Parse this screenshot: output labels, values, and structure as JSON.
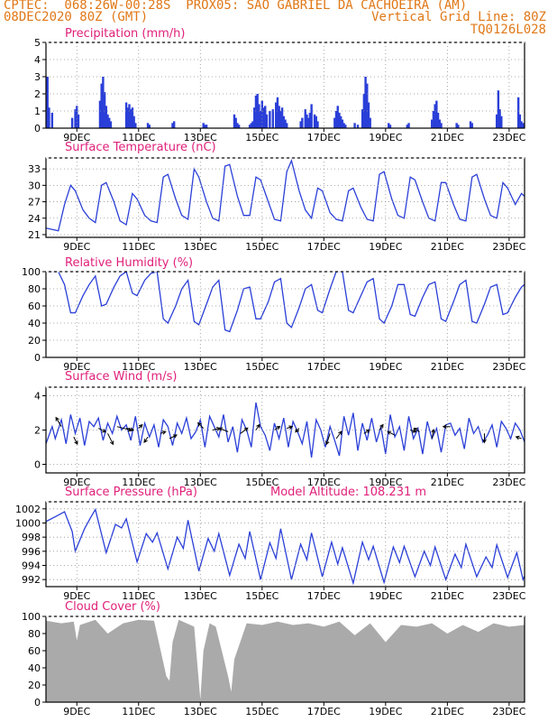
{
  "header": {
    "line1_left": "CPTEC:  068:26W-00:28S  PROX05: SAO GABRIEL DA CACHOEIRA (AM)",
    "line2_left": "08DEC2020 80Z (GMT)",
    "line2_right": "Vertical Grid Line: 80Z",
    "line3_right": "TQ0126L028"
  },
  "colors": {
    "header": "#e07818",
    "panel_title": "#e0207a",
    "line": "#2a3fd8",
    "bars": "#2a3fd8",
    "cloud": "#aaaaaa",
    "grid": "#909090"
  },
  "chart_data": [
    {
      "id": "precip",
      "type": "bar",
      "title": "Precipitation (mm/h)",
      "ylim": [
        0,
        5
      ],
      "yticks": [
        0,
        1,
        2,
        3,
        4,
        5
      ],
      "xlim": [
        0,
        15.5
      ],
      "xticks": [
        1,
        3,
        5,
        7,
        9,
        11,
        13,
        15
      ],
      "xtick_labels": [
        "9DEC",
        "11DEC",
        "13DEC",
        "15DEC",
        "17DEC",
        "19DEC",
        "21DEC",
        "23DEC"
      ],
      "grid": true,
      "x": [
        0.05,
        0.1,
        0.2,
        0.85,
        0.95,
        1.0,
        1.05,
        1.75,
        1.8,
        1.85,
        1.9,
        1.95,
        2.0,
        2.05,
        2.1,
        2.6,
        2.65,
        2.7,
        2.75,
        2.8,
        2.85,
        2.9,
        3.3,
        3.35,
        4.1,
        4.15,
        5.1,
        5.15,
        5.2,
        6.1,
        6.15,
        6.2,
        6.25,
        6.6,
        6.65,
        6.7,
        6.75,
        6.8,
        6.85,
        6.9,
        6.95,
        7.0,
        7.05,
        7.1,
        7.15,
        7.25,
        7.35,
        7.45,
        7.5,
        7.55,
        7.6,
        7.65,
        7.7,
        7.75,
        7.8,
        8.25,
        8.3,
        8.4,
        8.45,
        8.5,
        8.55,
        8.6,
        8.7,
        8.75,
        8.8,
        9.35,
        9.4,
        9.45,
        9.5,
        9.55,
        9.6,
        9.65,
        9.7,
        10.0,
        10.1,
        10.25,
        10.3,
        10.35,
        10.4,
        10.45,
        10.5,
        11.1,
        11.15,
        11.7,
        11.75,
        12.5,
        12.55,
        12.6,
        12.65,
        12.7,
        12.75,
        12.8,
        13.3,
        13.35,
        13.75,
        13.8,
        14.6,
        14.65,
        14.7,
        14.75,
        15.3,
        15.35,
        15.4,
        15.45
      ],
      "values": [
        3.0,
        1.2,
        0.9,
        0.6,
        1.1,
        1.3,
        0.8,
        1.6,
        2.6,
        3.0,
        2.1,
        1.3,
        0.8,
        0.6,
        0.4,
        1.5,
        1.2,
        1.4,
        1.1,
        1.2,
        0.7,
        0.3,
        0.3,
        0.2,
        0.3,
        0.4,
        0.3,
        0.2,
        0.2,
        0.8,
        0.6,
        0.3,
        0.2,
        0.2,
        0.3,
        0.4,
        1.2,
        1.9,
        2.0,
        1.4,
        1.0,
        1.6,
        1.2,
        1.3,
        0.8,
        1.0,
        1.1,
        1.5,
        1.8,
        1.3,
        1.0,
        1.2,
        0.7,
        0.5,
        0.3,
        0.4,
        0.6,
        1.1,
        0.8,
        0.6,
        0.9,
        1.4,
        0.8,
        0.7,
        0.4,
        0.6,
        1.0,
        1.3,
        0.9,
        0.7,
        0.5,
        0.3,
        0.2,
        0.3,
        0.2,
        1.1,
        2.0,
        3.0,
        2.6,
        1.5,
        0.6,
        0.3,
        0.2,
        0.2,
        0.3,
        0.5,
        1.0,
        1.4,
        1.6,
        0.9,
        0.5,
        0.3,
        0.3,
        0.2,
        0.4,
        0.3,
        0.8,
        2.2,
        1.1,
        0.7,
        1.8,
        0.8,
        0.4,
        0.3
      ]
    },
    {
      "id": "temp",
      "type": "line",
      "title": "Surface Temperature (nC)",
      "ylim": [
        20.5,
        35
      ],
      "yticks": [
        21,
        24,
        27,
        30,
        33
      ],
      "xlim": [
        0,
        15.5
      ],
      "xticks": [
        1,
        3,
        5,
        7,
        9,
        11,
        13,
        15
      ],
      "xtick_labels": [
        "9DEC",
        "11DEC",
        "13DEC",
        "15DEC",
        "17DEC",
        "19DEC",
        "21DEC",
        "23DEC"
      ],
      "grid": true,
      "x": [
        0,
        0.4,
        0.6,
        0.8,
        0.95,
        1.2,
        1.4,
        1.6,
        1.8,
        1.95,
        2.2,
        2.4,
        2.6,
        2.8,
        2.95,
        3.2,
        3.4,
        3.6,
        3.8,
        3.95,
        4.2,
        4.4,
        4.6,
        4.8,
        4.95,
        5.2,
        5.4,
        5.6,
        5.8,
        5.95,
        6.2,
        6.4,
        6.6,
        6.8,
        6.95,
        7.2,
        7.4,
        7.6,
        7.8,
        7.95,
        8.2,
        8.4,
        8.6,
        8.8,
        8.95,
        9.2,
        9.4,
        9.6,
        9.8,
        9.95,
        10.2,
        10.4,
        10.6,
        10.8,
        10.95,
        11.2,
        11.4,
        11.6,
        11.8,
        11.95,
        12.2,
        12.4,
        12.6,
        12.8,
        12.95,
        13.2,
        13.4,
        13.6,
        13.8,
        13.95,
        14.2,
        14.4,
        14.6,
        14.8,
        14.95,
        15.2,
        15.4,
        15.5
      ],
      "values": [
        22.2,
        21.7,
        26.5,
        30.0,
        29.0,
        25.5,
        24.0,
        23.2,
        30.0,
        30.5,
        27.0,
        23.5,
        22.8,
        28.5,
        27.5,
        24.5,
        23.5,
        23.2,
        31.5,
        32.0,
        27.5,
        24.5,
        23.8,
        33.0,
        31.5,
        27.0,
        24.0,
        23.5,
        33.5,
        33.8,
        28.0,
        24.5,
        24.5,
        31.5,
        31.0,
        27.0,
        23.8,
        23.5,
        32.5,
        34.5,
        29.0,
        25.5,
        24.0,
        29.5,
        29.0,
        25.0,
        23.8,
        23.5,
        29.0,
        29.5,
        26.0,
        23.8,
        23.5,
        32.0,
        32.5,
        27.5,
        24.5,
        24.0,
        31.5,
        31.0,
        27.0,
        24.0,
        23.5,
        30.5,
        30.5,
        26.5,
        23.8,
        23.5,
        31.5,
        32.0,
        27.5,
        24.5,
        24.0,
        30.5,
        29.5,
        26.5,
        28.5,
        28.0
      ]
    },
    {
      "id": "rh",
      "type": "line",
      "title": "Relative Humidity (%)",
      "ylim": [
        0,
        100
      ],
      "yticks": [
        0,
        20,
        40,
        60,
        80,
        100
      ],
      "xlim": [
        0,
        15.5
      ],
      "xticks": [
        1,
        3,
        5,
        7,
        9,
        11,
        13,
        15
      ],
      "xtick_labels": [
        "9DEC",
        "11DEC",
        "13DEC",
        "15DEC",
        "17DEC",
        "19DEC",
        "21DEC",
        "23DEC"
      ],
      "grid": true,
      "x": [
        0,
        0.4,
        0.6,
        0.8,
        0.95,
        1.2,
        1.4,
        1.6,
        1.8,
        1.95,
        2.2,
        2.4,
        2.6,
        2.8,
        2.95,
        3.2,
        3.4,
        3.6,
        3.8,
        3.95,
        4.2,
        4.4,
        4.6,
        4.8,
        4.95,
        5.2,
        5.4,
        5.6,
        5.8,
        5.95,
        6.2,
        6.4,
        6.6,
        6.8,
        6.95,
        7.2,
        7.4,
        7.6,
        7.8,
        7.95,
        8.2,
        8.4,
        8.6,
        8.8,
        8.95,
        9.2,
        9.4,
        9.6,
        9.8,
        9.95,
        10.2,
        10.4,
        10.6,
        10.8,
        10.95,
        11.2,
        11.4,
        11.6,
        11.8,
        11.95,
        12.2,
        12.4,
        12.6,
        12.8,
        12.95,
        13.2,
        13.4,
        13.6,
        13.8,
        13.95,
        14.2,
        14.4,
        14.6,
        14.8,
        14.95,
        15.2,
        15.4,
        15.5
      ],
      "values": [
        100,
        100,
        85,
        52,
        52,
        72,
        85,
        95,
        60,
        62,
        82,
        95,
        100,
        75,
        72,
        90,
        98,
        100,
        45,
        40,
        60,
        80,
        90,
        42,
        38,
        62,
        82,
        90,
        32,
        30,
        55,
        80,
        82,
        45,
        45,
        65,
        88,
        92,
        40,
        35,
        58,
        80,
        85,
        55,
        52,
        80,
        100,
        100,
        55,
        52,
        72,
        88,
        92,
        45,
        40,
        60,
        85,
        85,
        50,
        48,
        70,
        85,
        88,
        45,
        42,
        65,
        85,
        90,
        42,
        40,
        62,
        82,
        85,
        50,
        52,
        70,
        82,
        85
      ]
    },
    {
      "id": "wind",
      "type": "line",
      "title": "Surface Wind (m/s)",
      "ylim": [
        -0.5,
        4.5
      ],
      "yticks": [
        0,
        2,
        4
      ],
      "xlim": [
        0,
        15.5
      ],
      "xticks": [
        1,
        3,
        5,
        7,
        9,
        11,
        13,
        15
      ],
      "xtick_labels": [
        "9DEC",
        "11DEC",
        "13DEC",
        "15DEC",
        "17DEC",
        "19DEC",
        "21DEC",
        "23DEC"
      ],
      "grid": true,
      "x": [
        0,
        0.2,
        0.3,
        0.5,
        0.65,
        0.8,
        0.95,
        1.1,
        1.25,
        1.4,
        1.55,
        1.7,
        1.85,
        2.0,
        2.15,
        2.3,
        2.45,
        2.6,
        2.75,
        2.9,
        3.05,
        3.2,
        3.35,
        3.5,
        3.65,
        3.8,
        3.95,
        4.1,
        4.25,
        4.4,
        4.55,
        4.7,
        4.85,
        5.0,
        5.15,
        5.3,
        5.45,
        5.6,
        5.75,
        5.9,
        6.05,
        6.2,
        6.35,
        6.5,
        6.65,
        6.8,
        6.95,
        7.1,
        7.25,
        7.4,
        7.55,
        7.7,
        7.85,
        8.0,
        8.15,
        8.3,
        8.45,
        8.6,
        8.75,
        8.9,
        9.05,
        9.2,
        9.35,
        9.5,
        9.65,
        9.8,
        9.95,
        10.1,
        10.25,
        10.4,
        10.55,
        10.7,
        10.85,
        11.0,
        11.15,
        11.3,
        11.45,
        11.6,
        11.75,
        11.9,
        12.05,
        12.2,
        12.35,
        12.5,
        12.65,
        12.8,
        12.95,
        13.1,
        13.25,
        13.4,
        13.55,
        13.7,
        13.85,
        14.0,
        14.15,
        14.3,
        14.45,
        14.6,
        14.75,
        14.9,
        15.05,
        15.2,
        15.35,
        15.5
      ],
      "values": [
        1.2,
        2.2,
        1.5,
        2.6,
        1.2,
        2.9,
        1.8,
        2.7,
        1.1,
        2.5,
        2.2,
        2.7,
        1.4,
        2.4,
        1.8,
        2.8,
        2.0,
        2.3,
        1.4,
        2.8,
        1.1,
        2.4,
        1.6,
        2.3,
        1.0,
        2.6,
        2.2,
        1.1,
        2.4,
        1.8,
        2.7,
        1.5,
        1.9,
        2.6,
        1.0,
        2.8,
        2.2,
        1.6,
        2.9,
        1.3,
        2.2,
        0.7,
        2.6,
        2.0,
        1.0,
        3.6,
        2.2,
        1.7,
        0.8,
        2.4,
        1.5,
        2.7,
        1.0,
        2.5,
        1.9,
        1.2,
        2.5,
        0.4,
        2.6,
        2.0,
        1.0,
        2.2,
        1.4,
        0.5,
        2.8,
        1.7,
        3.0,
        0.8,
        2.4,
        1.4,
        2.7,
        1.3,
        2.2,
        0.6,
        2.9,
        1.6,
        2.2,
        0.8,
        2.8,
        1.5,
        2.1,
        0.6,
        2.5,
        1.5,
        2.1,
        0.7,
        2.3,
        2.4,
        1.7,
        2.1,
        0.9,
        2.7,
        1.8,
        2.2,
        1.3,
        1.7,
        2.3,
        1.0,
        2.5,
        2.1,
        1.5,
        2.4,
        2.0,
        1.3
      ],
      "arrows": [
        {
          "x": 0.5,
          "y": 2.2,
          "u": -0.3,
          "v": 0.5
        },
        {
          "x": 0.9,
          "y": 1.6,
          "u": 0.2,
          "v": -0.4
        },
        {
          "x": 1.7,
          "y": 2.1,
          "u": 0.4,
          "v": -0.2
        },
        {
          "x": 2.0,
          "y": 1.8,
          "u": 0.3,
          "v": -0.6
        },
        {
          "x": 2.3,
          "y": 2.2,
          "u": 0.8,
          "v": -0.2
        },
        {
          "x": 2.6,
          "y": 2.1,
          "u": 0.4,
          "v": -0.1
        },
        {
          "x": 3.0,
          "y": 2.1,
          "u": 0.2,
          "v": 0.2
        },
        {
          "x": 3.3,
          "y": 1.6,
          "u": -0.2,
          "v": -0.3
        },
        {
          "x": 3.7,
          "y": 1.8,
          "u": 0.3,
          "v": 0.1
        },
        {
          "x": 4.0,
          "y": 1.5,
          "u": 0.4,
          "v": 0.2
        },
        {
          "x": 5.1,
          "y": 2.1,
          "u": -0.3,
          "v": 0.3
        },
        {
          "x": 5.4,
          "y": 2.0,
          "u": 0.4,
          "v": 0.1
        },
        {
          "x": 5.9,
          "y": 1.9,
          "u": -0.5,
          "v": 0.2
        },
        {
          "x": 6.3,
          "y": 1.8,
          "u": 0.4,
          "v": 0.3
        },
        {
          "x": 6.8,
          "y": 2.0,
          "u": 0.2,
          "v": 0.3
        },
        {
          "x": 7.4,
          "y": 2.0,
          "u": 0.3,
          "v": 0.2
        },
        {
          "x": 7.8,
          "y": 2.1,
          "u": 0.3,
          "v": 0.1
        },
        {
          "x": 8.2,
          "y": 2.1,
          "u": -0.2,
          "v": -0.2
        },
        {
          "x": 9.2,
          "y": 1.8,
          "u": -0.2,
          "v": -0.6
        },
        {
          "x": 9.4,
          "y": 1.5,
          "u": 0.3,
          "v": 0.4
        },
        {
          "x": 10.3,
          "y": 1.8,
          "u": 0.3,
          "v": 0.2
        },
        {
          "x": 10.8,
          "y": 2.0,
          "u": 0.2,
          "v": 0.3
        },
        {
          "x": 11.3,
          "y": 1.7,
          "u": -0.4,
          "v": 0.2
        },
        {
          "x": 11.8,
          "y": 2.0,
          "u": 0.3,
          "v": -0.1
        },
        {
          "x": 12.1,
          "y": 1.9,
          "u": -0.3,
          "v": 0.2
        },
        {
          "x": 12.5,
          "y": 1.5,
          "u": 0.1,
          "v": 0.5
        },
        {
          "x": 13.1,
          "y": 2.2,
          "u": -0.4,
          "v": 0.0
        },
        {
          "x": 14.2,
          "y": 1.8,
          "u": 0.0,
          "v": -0.5
        },
        {
          "x": 15.4,
          "y": 1.5,
          "u": -0.3,
          "v": 0.1
        }
      ]
    },
    {
      "id": "pres",
      "type": "line",
      "title": "Surface Pressure (hPa)",
      "annotation": "Model Altitude: 108.231 m",
      "ylim": [
        991,
        1003
      ],
      "yticks": [
        992,
        994,
        996,
        998,
        1000,
        1002
      ],
      "xlim": [
        0,
        15.5
      ],
      "xticks": [
        1,
        3,
        5,
        7,
        9,
        11,
        13,
        15
      ],
      "xtick_labels": [
        "9DEC",
        "11DEC",
        "13DEC",
        "15DEC",
        "17DEC",
        "19DEC",
        "21DEC",
        "23DEC"
      ],
      "grid": true,
      "x": [
        0,
        0.35,
        0.6,
        0.85,
        0.95,
        1.25,
        1.45,
        1.6,
        1.95,
        2.25,
        2.45,
        2.6,
        2.95,
        3.25,
        3.45,
        3.6,
        3.95,
        4.25,
        4.45,
        4.6,
        4.95,
        5.25,
        5.45,
        5.6,
        5.95,
        6.25,
        6.45,
        6.6,
        6.95,
        7.25,
        7.45,
        7.6,
        7.95,
        8.25,
        8.45,
        8.6,
        8.95,
        9.25,
        9.45,
        9.6,
        9.95,
        10.25,
        10.45,
        10.6,
        10.95,
        11.25,
        11.45,
        11.6,
        11.95,
        12.25,
        12.45,
        12.6,
        12.95,
        13.25,
        13.45,
        13.6,
        13.95,
        14.25,
        14.45,
        14.6,
        14.95,
        15.25,
        15.45,
        15.5
      ],
      "values": [
        1000.2,
        1001.0,
        1001.6,
        998.8,
        996.0,
        999.2,
        1000.8,
        1001.9,
        995.8,
        999.8,
        999.3,
        1000.6,
        994.5,
        998.5,
        997.3,
        998.6,
        993.5,
        998.0,
        996.4,
        1000.4,
        993.2,
        997.8,
        996.0,
        998.5,
        992.6,
        997.0,
        995.0,
        998.8,
        992.0,
        997.2,
        995.0,
        999.2,
        992.0,
        997.0,
        994.8,
        998.6,
        992.4,
        997.3,
        994.2,
        996.5,
        991.5,
        997.3,
        994.8,
        996.7,
        991.6,
        996.6,
        994.4,
        996.7,
        992.4,
        996.0,
        994.0,
        996.6,
        992.0,
        995.6,
        993.7,
        997.0,
        992.4,
        995.2,
        993.7,
        996.9,
        992.3,
        995.8,
        992.0,
        992.5
      ]
    },
    {
      "id": "cloud",
      "type": "area",
      "title": "Cloud Cover (%)",
      "ylim": [
        0,
        100
      ],
      "yticks": [
        0,
        20,
        40,
        60,
        80,
        100
      ],
      "xlim": [
        0,
        15.5
      ],
      "xticks": [
        1,
        3,
        5,
        7,
        9,
        11,
        13,
        15
      ],
      "xtick_labels": [
        "9DEC",
        "11DEC",
        "13DEC",
        "15DEC",
        "17DEC",
        "19DEC",
        "21DEC",
        "23DEC"
      ],
      "grid": false,
      "x": [
        0,
        0.5,
        0.9,
        1.0,
        1.1,
        1.6,
        2.0,
        2.5,
        3.0,
        3.5,
        3.9,
        4.0,
        4.1,
        4.3,
        4.8,
        5.0,
        5.1,
        5.3,
        5.5,
        5.9,
        6.0,
        6.1,
        6.5,
        7.0,
        7.5,
        8.0,
        8.5,
        9.0,
        9.5,
        10.0,
        10.5,
        11.0,
        11.5,
        12.0,
        12.5,
        13.0,
        13.5,
        14.0,
        14.5,
        15.0,
        15.5
      ],
      "values": [
        95,
        92,
        94,
        72,
        90,
        96,
        80,
        92,
        96,
        95,
        30,
        25,
        70,
        96,
        88,
        3,
        60,
        92,
        88,
        30,
        12,
        50,
        92,
        90,
        94,
        90,
        92,
        88,
        94,
        78,
        92,
        70,
        90,
        88,
        92,
        80,
        90,
        82,
        92,
        88,
        90
      ]
    }
  ]
}
